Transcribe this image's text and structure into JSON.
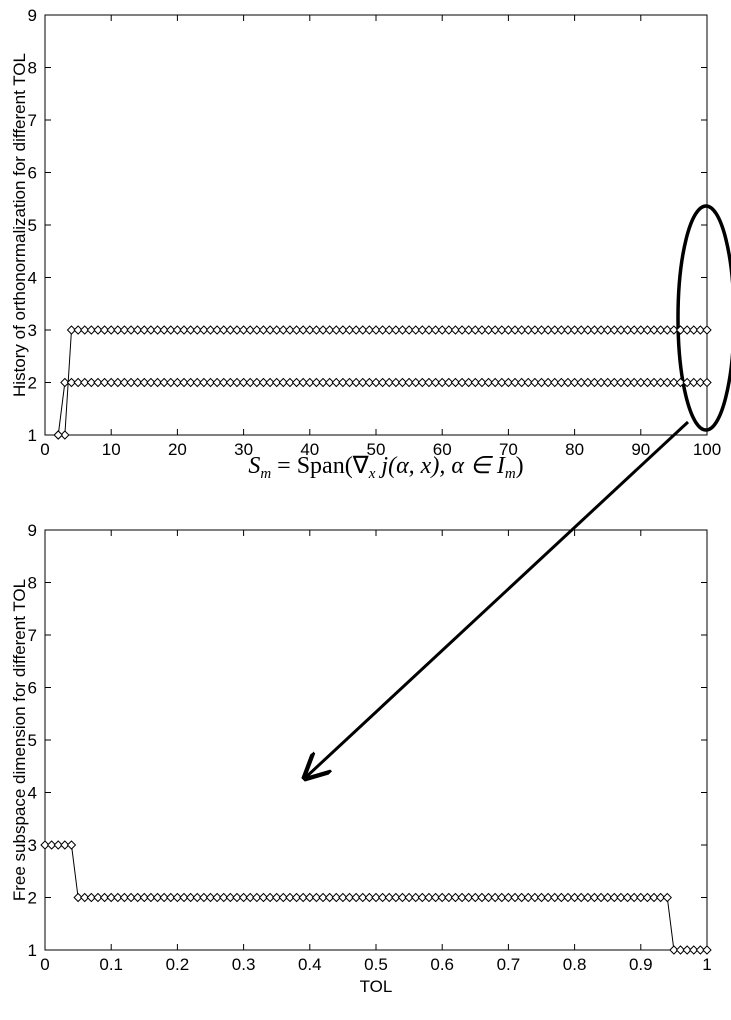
{
  "chart_data": [
    {
      "type": "line",
      "ylabel": "History of orthonormalization for different TOL",
      "annotation": [
        "S",
        "m",
        " = Span(∇",
        "x",
        " j(α, x), α ∈ I",
        "m",
        ")"
      ],
      "xlim": [
        0,
        100
      ],
      "ylim": [
        1,
        9
      ],
      "xticks": [
        0,
        10,
        20,
        30,
        40,
        50,
        60,
        70,
        80,
        90,
        100
      ],
      "yticks": [
        1,
        2,
        3,
        4,
        5,
        6,
        7,
        8,
        9
      ],
      "marker": "diamond",
      "x": [
        2,
        3,
        4,
        5,
        6,
        7,
        8,
        9,
        10,
        11,
        12,
        13,
        14,
        15,
        16,
        17,
        18,
        19,
        20,
        21,
        22,
        23,
        24,
        25,
        26,
        27,
        28,
        29,
        30,
        31,
        32,
        33,
        34,
        35,
        36,
        37,
        38,
        39,
        40,
        41,
        42,
        43,
        44,
        45,
        46,
        47,
        48,
        49,
        50,
        51,
        52,
        53,
        54,
        55,
        56,
        57,
        58,
        59,
        60,
        61,
        62,
        63,
        64,
        65,
        66,
        67,
        68,
        69,
        70,
        71,
        72,
        73,
        74,
        75,
        76,
        77,
        78,
        79,
        80,
        81,
        82,
        83,
        84,
        85,
        86,
        87,
        88,
        89,
        90,
        91,
        92,
        93,
        94,
        95,
        96,
        97,
        98,
        99,
        100
      ],
      "series": [
        {
          "color": "#000000",
          "values": [
            1,
            1,
            3,
            3,
            3,
            3,
            3,
            3,
            3,
            3,
            3,
            3,
            3,
            3,
            3,
            3,
            3,
            3,
            3,
            3,
            3,
            3,
            3,
            3,
            3,
            3,
            3,
            3,
            3,
            3,
            3,
            3,
            3,
            3,
            3,
            3,
            3,
            3,
            3,
            3,
            3,
            3,
            3,
            3,
            3,
            3,
            3,
            3,
            3,
            3,
            3,
            3,
            3,
            3,
            3,
            3,
            3,
            3,
            3,
            3,
            3,
            3,
            3,
            3,
            3,
            3,
            3,
            3,
            3,
            3,
            3,
            3,
            3,
            3,
            3,
            3,
            3,
            3,
            3,
            3,
            3,
            3,
            3,
            3,
            3,
            3,
            3,
            3,
            3,
            3,
            3,
            3,
            3,
            3,
            3,
            3,
            3,
            3,
            3
          ]
        },
        {
          "color": "#000000",
          "values": [
            1,
            2,
            2,
            2,
            2,
            2,
            2,
            2,
            2,
            2,
            2,
            2,
            2,
            2,
            2,
            2,
            2,
            2,
            2,
            2,
            2,
            2,
            2,
            2,
            2,
            2,
            2,
            2,
            2,
            2,
            2,
            2,
            2,
            2,
            2,
            2,
            2,
            2,
            2,
            2,
            2,
            2,
            2,
            2,
            2,
            2,
            2,
            2,
            2,
            2,
            2,
            2,
            2,
            2,
            2,
            2,
            2,
            2,
            2,
            2,
            2,
            2,
            2,
            2,
            2,
            2,
            2,
            2,
            2,
            2,
            2,
            2,
            2,
            2,
            2,
            2,
            2,
            2,
            2,
            2,
            2,
            2,
            2,
            2,
            2,
            2,
            2,
            2,
            2,
            2,
            2,
            2,
            2,
            2,
            2,
            2,
            2,
            2,
            2
          ]
        }
      ]
    },
    {
      "type": "line",
      "xlabel": "TOL",
      "ylabel": "Free subspace dimension for different TOL",
      "xlim": [
        0,
        1
      ],
      "ylim": [
        1,
        9
      ],
      "xticks": [
        0,
        0.1,
        0.2,
        0.3,
        0.4,
        0.5,
        0.6,
        0.7,
        0.8,
        0.9,
        1
      ],
      "yticks": [
        1,
        2,
        3,
        4,
        5,
        6,
        7,
        8,
        9
      ],
      "marker": "diamond",
      "x": [
        0,
        0.01,
        0.02,
        0.03,
        0.04,
        0.05,
        0.06,
        0.07,
        0.08,
        0.09,
        0.1,
        0.11,
        0.12,
        0.13,
        0.14,
        0.15,
        0.16,
        0.17,
        0.18,
        0.19,
        0.2,
        0.21,
        0.22,
        0.23,
        0.24,
        0.25,
        0.26,
        0.27,
        0.28,
        0.29,
        0.3,
        0.31,
        0.32,
        0.33,
        0.34,
        0.35,
        0.36,
        0.37,
        0.38,
        0.39,
        0.4,
        0.41,
        0.42,
        0.43,
        0.44,
        0.45,
        0.46,
        0.47,
        0.48,
        0.49,
        0.5,
        0.51,
        0.52,
        0.53,
        0.54,
        0.55,
        0.56,
        0.57,
        0.58,
        0.59,
        0.6,
        0.61,
        0.62,
        0.63,
        0.64,
        0.65,
        0.66,
        0.67,
        0.68,
        0.69,
        0.7,
        0.71,
        0.72,
        0.73,
        0.74,
        0.75,
        0.76,
        0.77,
        0.78,
        0.79,
        0.8,
        0.81,
        0.82,
        0.83,
        0.84,
        0.85,
        0.86,
        0.87,
        0.88,
        0.89,
        0.9,
        0.91,
        0.92,
        0.93,
        0.94,
        0.95,
        0.96,
        0.97,
        0.98,
        0.99,
        1
      ],
      "series": [
        {
          "color": "#000000",
          "values": [
            3,
            3,
            3,
            3,
            3,
            2,
            2,
            2,
            2,
            2,
            2,
            2,
            2,
            2,
            2,
            2,
            2,
            2,
            2,
            2,
            2,
            2,
            2,
            2,
            2,
            2,
            2,
            2,
            2,
            2,
            2,
            2,
            2,
            2,
            2,
            2,
            2,
            2,
            2,
            2,
            2,
            2,
            2,
            2,
            2,
            2,
            2,
            2,
            2,
            2,
            2,
            2,
            2,
            2,
            2,
            2,
            2,
            2,
            2,
            2,
            2,
            2,
            2,
            2,
            2,
            2,
            2,
            2,
            2,
            2,
            2,
            2,
            2,
            2,
            2,
            2,
            2,
            2,
            2,
            2,
            2,
            2,
            2,
            2,
            2,
            2,
            2,
            2,
            2,
            2,
            2,
            2,
            2,
            2,
            2,
            1,
            1,
            1,
            1,
            1,
            1
          ]
        }
      ]
    }
  ]
}
